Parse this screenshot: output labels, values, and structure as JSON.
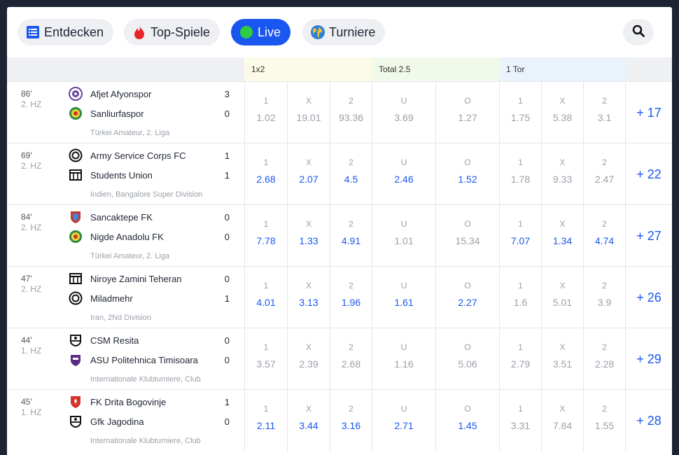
{
  "nav": {
    "tabs": [
      {
        "label": "Entdecken",
        "icon": "list-icon",
        "active": false
      },
      {
        "label": "Top-Spiele",
        "icon": "fire-icon",
        "active": false
      },
      {
        "label": "Live",
        "icon": "live-dot-icon",
        "active": true
      },
      {
        "label": "Turniere",
        "icon": "globe-icon",
        "active": false
      }
    ],
    "search_icon": "search-icon"
  },
  "markets": [
    "1x2",
    "Total 2.5",
    "1 Tor"
  ],
  "colors": {
    "accent": "#1a56f0",
    "background": "#1e2433",
    "header": "#eef0f3",
    "m1x2": "#fbfbe8",
    "total": "#f1f9ea",
    "tor": "#eaf3fc"
  },
  "matches": [
    {
      "minute": "86'",
      "half": "2. HZ",
      "home": {
        "name": "Afjet Afyonspor",
        "score": "3",
        "logo": "crest-purple-icon"
      },
      "away": {
        "name": "Sanliurfaspor",
        "score": "0",
        "logo": "crest-green-icon"
      },
      "league": "Türkei Amateur, 2. Liga",
      "odds": [
        {
          "label": "1",
          "value": "1.02",
          "active": false
        },
        {
          "label": "X",
          "value": "19.01",
          "active": false
        },
        {
          "label": "2",
          "value": "93.36",
          "active": false
        },
        {
          "label": "U",
          "value": "3.69",
          "active": false
        },
        {
          "label": "O",
          "value": "1.27",
          "active": false
        },
        {
          "label": "1",
          "value": "1.75",
          "active": false
        },
        {
          "label": "X",
          "value": "5.38",
          "active": false
        },
        {
          "label": "2",
          "value": "3.1",
          "active": false
        }
      ],
      "more": "+ 17"
    },
    {
      "minute": "69'",
      "half": "2. HZ",
      "home": {
        "name": "Army Service Corps FC",
        "score": "1",
        "logo": "ring-icon"
      },
      "away": {
        "name": "Students Union",
        "score": "1",
        "logo": "kit-icon"
      },
      "league": "Indien, Bangalore Super Division",
      "odds": [
        {
          "label": "1",
          "value": "2.68",
          "active": true
        },
        {
          "label": "X",
          "value": "2.07",
          "active": true
        },
        {
          "label": "2",
          "value": "4.5",
          "active": true
        },
        {
          "label": "U",
          "value": "2.46",
          "active": true
        },
        {
          "label": "O",
          "value": "1.52",
          "active": true
        },
        {
          "label": "1",
          "value": "1.78",
          "active": false
        },
        {
          "label": "X",
          "value": "9.33",
          "active": false
        },
        {
          "label": "2",
          "value": "2.47",
          "active": false
        }
      ],
      "more": "+ 22"
    },
    {
      "minute": "84'",
      "half": "2. HZ",
      "home": {
        "name": "Sancaktepe FK",
        "score": "0",
        "logo": "crest-red-icon"
      },
      "away": {
        "name": "Nigde Anadolu FK",
        "score": "0",
        "logo": "crest-green-icon"
      },
      "league": "Türkei Amateur, 2. Liga",
      "odds": [
        {
          "label": "1",
          "value": "7.78",
          "active": true
        },
        {
          "label": "X",
          "value": "1.33",
          "active": true
        },
        {
          "label": "2",
          "value": "4.91",
          "active": true
        },
        {
          "label": "U",
          "value": "1.01",
          "active": false
        },
        {
          "label": "O",
          "value": "15.34",
          "active": false
        },
        {
          "label": "1",
          "value": "7.07",
          "active": true
        },
        {
          "label": "X",
          "value": "1.34",
          "active": true
        },
        {
          "label": "2",
          "value": "4.74",
          "active": true
        }
      ],
      "more": "+ 27"
    },
    {
      "minute": "47'",
      "half": "2. HZ",
      "home": {
        "name": "Niroye Zamini Teheran",
        "score": "0",
        "logo": "kit-icon"
      },
      "away": {
        "name": "Miladmehr",
        "score": "1",
        "logo": "ring-icon"
      },
      "league": "Iran, 2Nd Division",
      "odds": [
        {
          "label": "1",
          "value": "4.01",
          "active": true
        },
        {
          "label": "X",
          "value": "3.13",
          "active": true
        },
        {
          "label": "2",
          "value": "1.96",
          "active": true
        },
        {
          "label": "U",
          "value": "1.61",
          "active": true
        },
        {
          "label": "O",
          "value": "2.27",
          "active": true
        },
        {
          "label": "1",
          "value": "1.6",
          "active": false
        },
        {
          "label": "X",
          "value": "5.01",
          "active": false
        },
        {
          "label": "2",
          "value": "3.9",
          "active": false
        }
      ],
      "more": "+ 26"
    },
    {
      "minute": "44'",
      "half": "1. HZ",
      "home": {
        "name": "CSM Resita",
        "score": "0",
        "logo": "shield-outline-icon"
      },
      "away": {
        "name": "ASU Politehnica Timisoara",
        "score": "0",
        "logo": "crest-violet-icon"
      },
      "league": "Internationale Klubturniere, Club",
      "odds": [
        {
          "label": "1",
          "value": "3.57",
          "active": false
        },
        {
          "label": "X",
          "value": "2.39",
          "active": false
        },
        {
          "label": "2",
          "value": "2.68",
          "active": false
        },
        {
          "label": "U",
          "value": "1.16",
          "active": false
        },
        {
          "label": "O",
          "value": "5.06",
          "active": false
        },
        {
          "label": "1",
          "value": "2.79",
          "active": false
        },
        {
          "label": "X",
          "value": "3.51",
          "active": false
        },
        {
          "label": "2",
          "value": "2.28",
          "active": false
        }
      ],
      "more": "+ 29"
    },
    {
      "minute": "45'",
      "half": "1. HZ",
      "home": {
        "name": "FK Drita Bogovinje",
        "score": "1",
        "logo": "crest-red-shield-icon"
      },
      "away": {
        "name": "Gfk Jagodina",
        "score": "0",
        "logo": "shield-outline-icon"
      },
      "league": "Internationale Klubturniere, Club",
      "odds": [
        {
          "label": "1",
          "value": "2.11",
          "active": true
        },
        {
          "label": "X",
          "value": "3.44",
          "active": true
        },
        {
          "label": "2",
          "value": "3.16",
          "active": true
        },
        {
          "label": "U",
          "value": "2.71",
          "active": true
        },
        {
          "label": "O",
          "value": "1.45",
          "active": true
        },
        {
          "label": "1",
          "value": "3.31",
          "active": false
        },
        {
          "label": "X",
          "value": "7.84",
          "active": false
        },
        {
          "label": "2",
          "value": "1.55",
          "active": false
        }
      ],
      "more": "+ 28"
    }
  ]
}
